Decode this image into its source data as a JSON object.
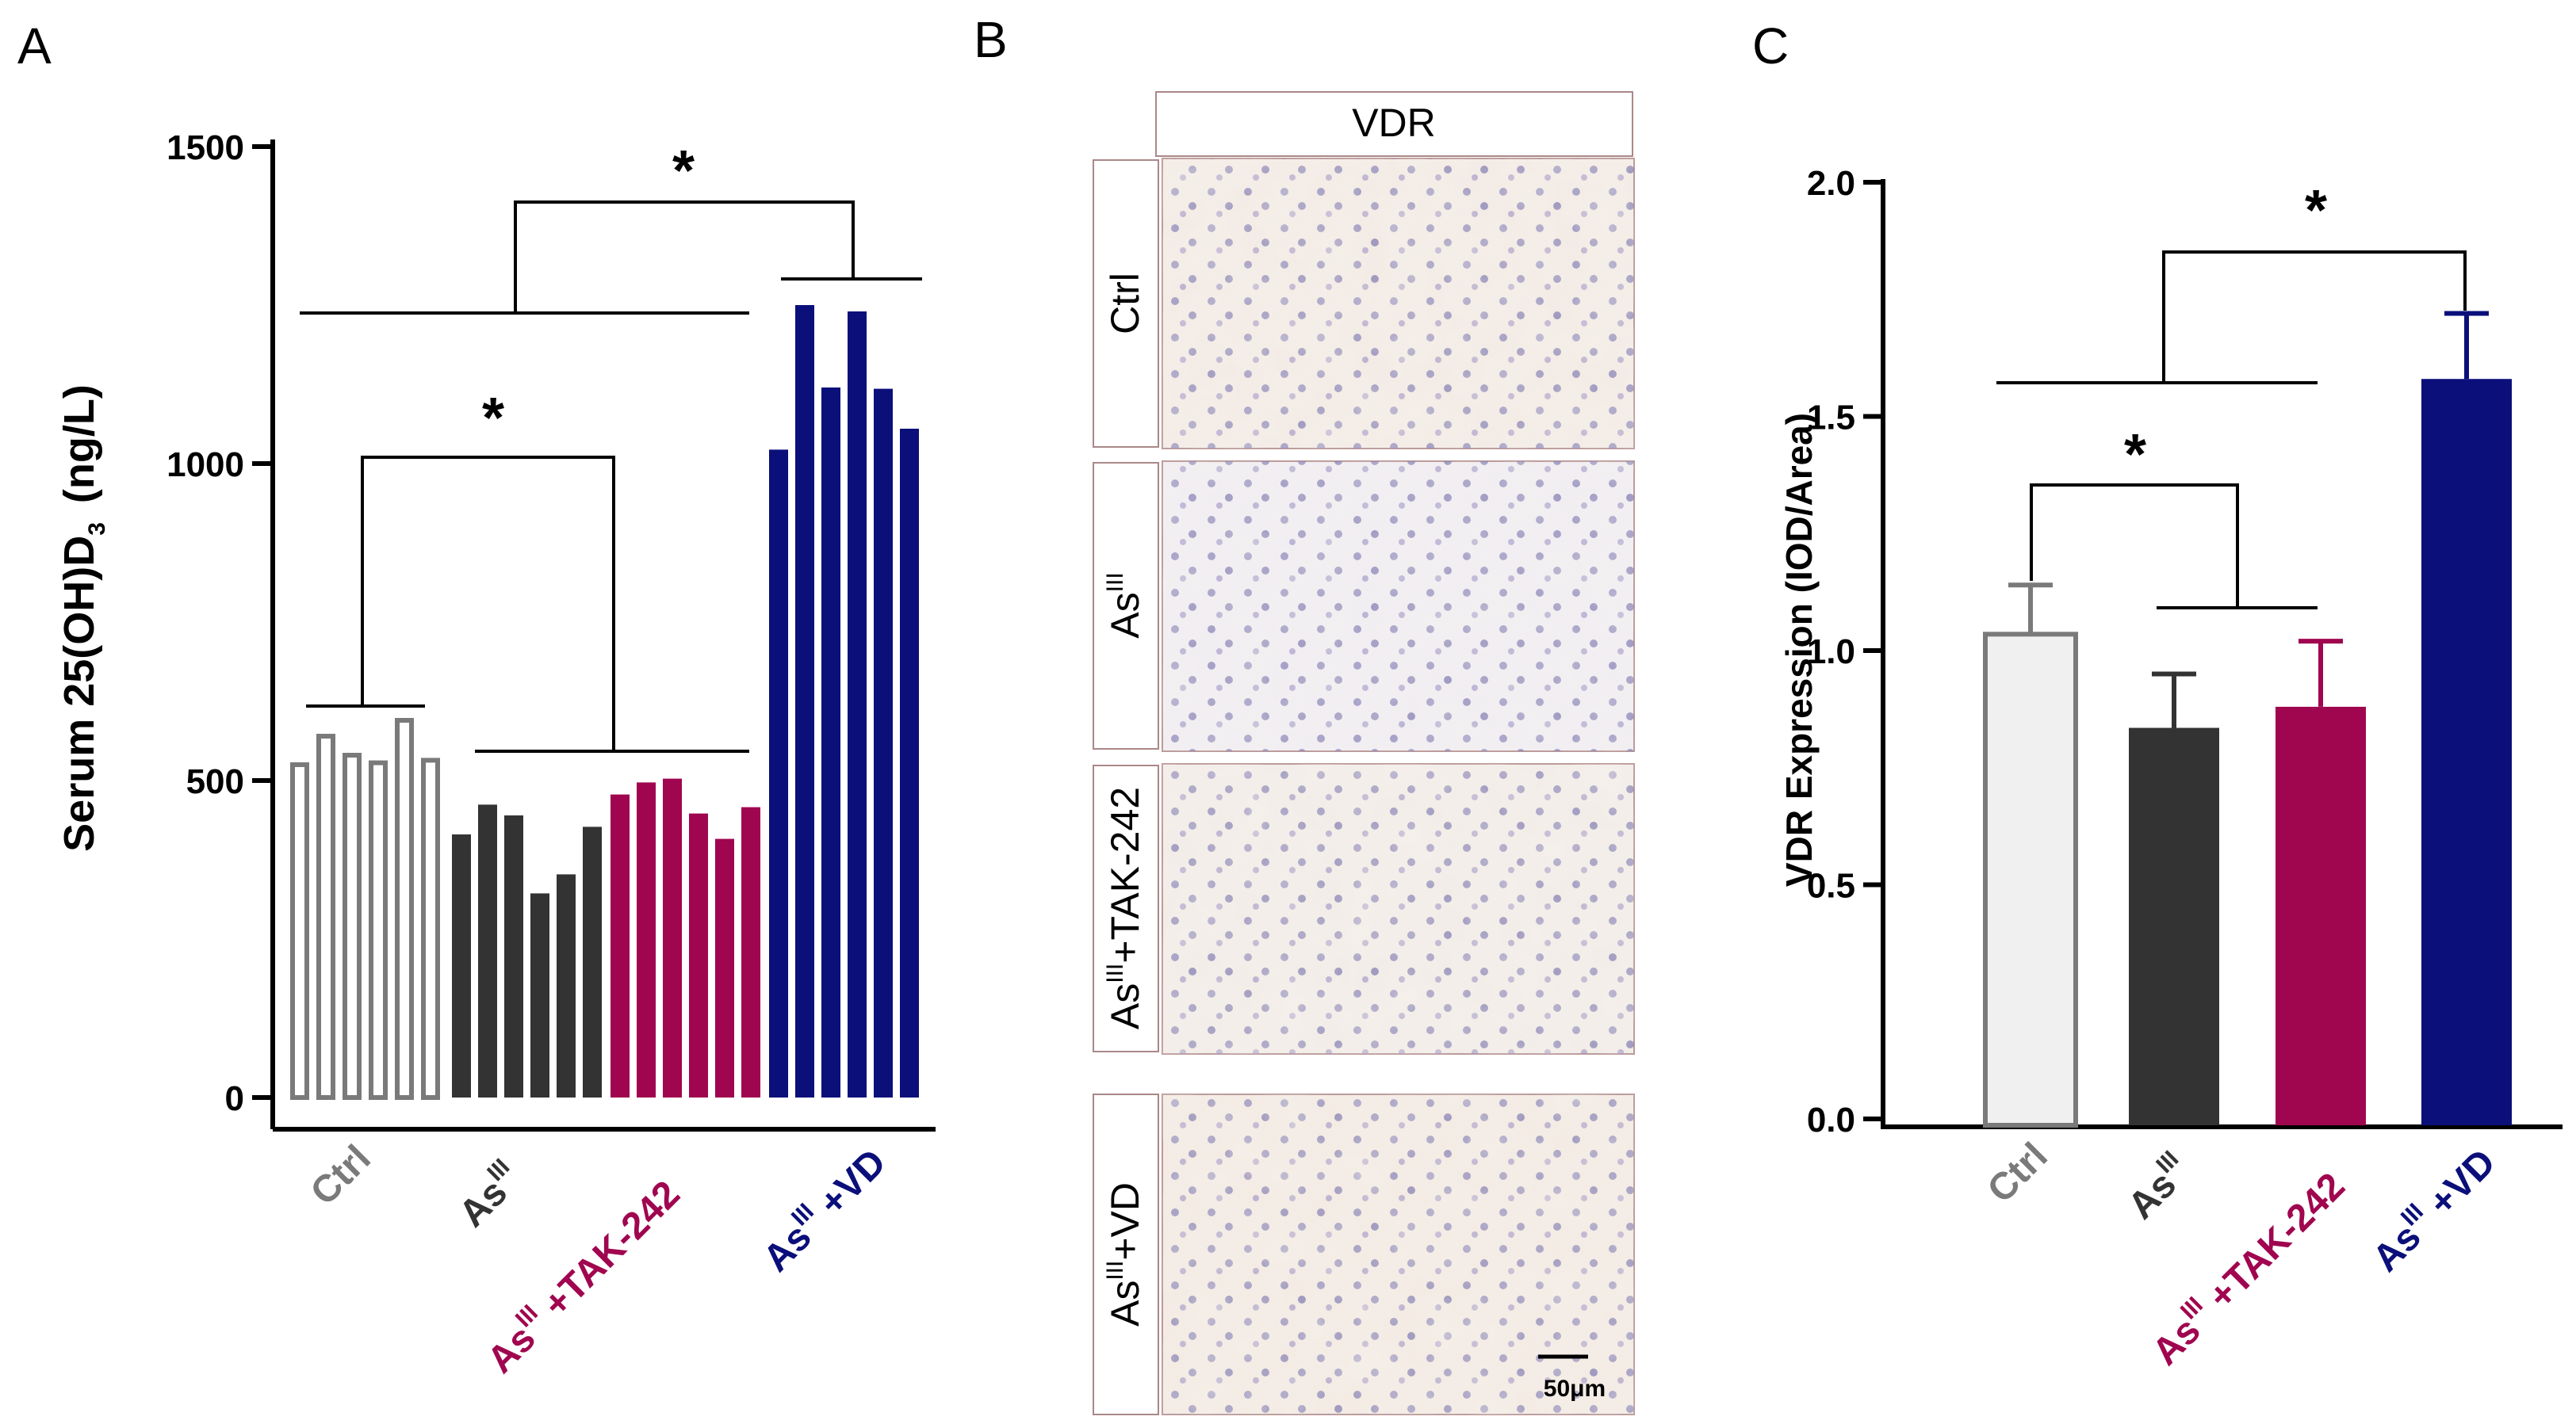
{
  "figure": {
    "panel_labels": [
      "A",
      "B",
      "C"
    ]
  },
  "colors": {
    "ctrl": "#7a7a7a",
    "as": "#333333",
    "tak": "#a0064f",
    "vd": "#0b0f7a",
    "ctrl_fill_c": "#f0f0f0"
  },
  "chart_data": [
    {
      "type": "bar",
      "panel": "A",
      "ylabel_main": "Serum 25(OH)D",
      "ylabel_sub": "3",
      "ylabel_unit": "(ng/L)",
      "ylim": [
        0,
        1500
      ],
      "yticks": [
        "0",
        "500",
        "1000",
        "1500"
      ],
      "ytick_values": [
        0,
        500,
        1000,
        1500
      ],
      "groups": [
        {
          "label": "Ctrl",
          "sup": "",
          "suffix": "",
          "color_key": "ctrl",
          "filled": false,
          "values": [
            525,
            570,
            540,
            528,
            595,
            532
          ]
        },
        {
          "label": "As",
          "sup": "III",
          "suffix": "",
          "color_key": "as",
          "filled": true,
          "values": [
            415,
            462,
            445,
            322,
            352,
            427
          ]
        },
        {
          "label": "As",
          "sup": "III",
          "suffix": " +TAK-242",
          "color_key": "tak",
          "filled": true,
          "values": [
            478,
            497,
            503,
            448,
            408,
            458
          ]
        },
        {
          "label": "As",
          "sup": "III",
          "suffix": " +VD",
          "color_key": "vd",
          "filled": true,
          "values": [
            1022,
            1250,
            1120,
            1240,
            1118,
            1055
          ]
        }
      ],
      "annotations": [
        "*",
        "*"
      ]
    },
    {
      "type": "bar",
      "panel": "C",
      "ylabel": "VDR Expression (IOD/Area)",
      "ylim": [
        0,
        2.0
      ],
      "yticks": [
        "0.0",
        "0.5",
        "1.0",
        "1.5",
        "2.0"
      ],
      "ytick_values": [
        0,
        0.5,
        1.0,
        1.5,
        2.0
      ],
      "categories": [
        {
          "label": "Ctrl",
          "sup": "",
          "suffix": "",
          "color_key": "ctrl"
        },
        {
          "label": "As",
          "sup": "III",
          "suffix": "",
          "color_key": "as"
        },
        {
          "label": "As",
          "sup": "III",
          "suffix": " +TAK-242",
          "color_key": "tak"
        },
        {
          "label": "As",
          "sup": "III",
          "suffix": " +VD",
          "color_key": "vd"
        }
      ],
      "values": [
        1.035,
        0.835,
        0.88,
        1.58
      ],
      "errors": [
        0.105,
        0.115,
        0.14,
        0.14
      ],
      "annotations": [
        "*",
        "*"
      ]
    }
  ],
  "panelB": {
    "header": "VDR",
    "rows": [
      {
        "label": "Ctrl",
        "sup": "",
        "suffix": ""
      },
      {
        "label": "As",
        "sup": "III",
        "suffix": ""
      },
      {
        "label": "As",
        "sup": "III",
        "suffix": "+TAK-242"
      },
      {
        "label": "As",
        "sup": "III",
        "suffix": "+VD"
      }
    ],
    "scale_bar": "50μm"
  }
}
